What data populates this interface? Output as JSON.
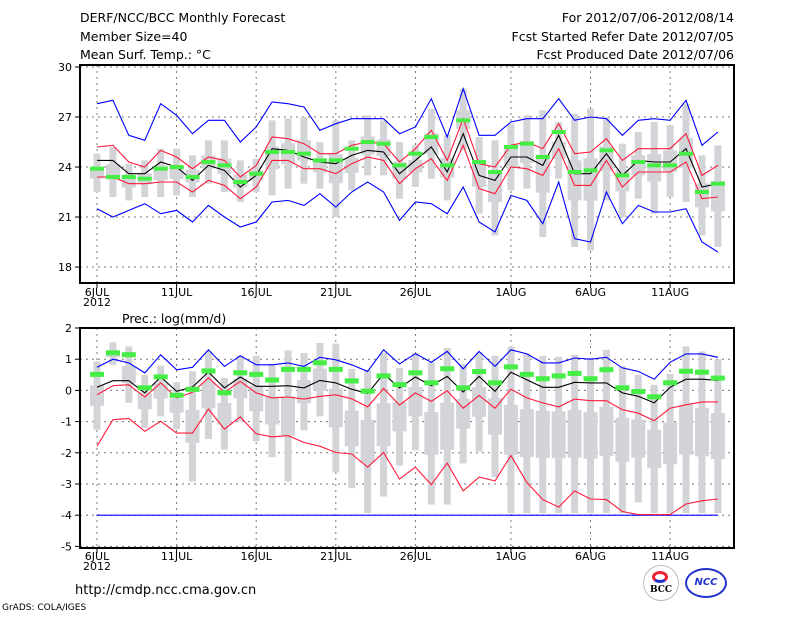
{
  "header": {
    "title": "DERF/NCC/BCC Monthly Forecast",
    "member_size": "Member Size=40",
    "variable": "Mean Surf. Temp.: °C",
    "period": "For 2012/07/06-2012/08/14",
    "refer_date": "Fcst Started Refer Date 2012/07/05",
    "produced_date": "Fcst Produced Date 2012/07/06"
  },
  "footer": {
    "url": "http://cmdp.ncc.cma.gov.cn",
    "credit": "GrADS: COLA/IGES",
    "logo_bcc": "BCC",
    "logo_ncc": "NCC"
  },
  "colors": {
    "max_min": "#0000ff",
    "spread": "#ff1a3c",
    "mean": "#000000",
    "obs": "#44ee44",
    "range": "#d3d4d8"
  },
  "chart_data": [
    {
      "type": "line",
      "title": "Mean Surf. Temp.: °C",
      "ylim": [
        17,
        30
      ],
      "yticks": [
        30,
        27,
        24,
        21,
        18
      ],
      "xtick_days": [
        0,
        5,
        10,
        15,
        20,
        26,
        31,
        36
      ],
      "xtick_labels": [
        "6JUL",
        "11JUL",
        "16JUL",
        "21JUL",
        "26JUL",
        "1AUG",
        "6AUG",
        "11AUG"
      ],
      "xtick_year": "2012",
      "days": 40,
      "series": [
        {
          "name": "max",
          "color": "#0000ff",
          "values": [
            27.8,
            28.0,
            25.9,
            25.6,
            27.8,
            27.1,
            26.0,
            26.8,
            26.8,
            25.5,
            26.4,
            27.9,
            27.8,
            27.6,
            26.2,
            26.6,
            26.9,
            26.9,
            26.9,
            26.0,
            26.4,
            28.1,
            25.8,
            28.7,
            25.9,
            25.9,
            26.7,
            26.9,
            26.9,
            28.1,
            26.8,
            27.0,
            26.9,
            25.9,
            26.8,
            26.9,
            26.8,
            28.0,
            25.3,
            26.1
          ]
        },
        {
          "name": "min",
          "color": "#0000ff",
          "values": [
            21.5,
            21.0,
            21.4,
            21.8,
            21.2,
            21.4,
            20.7,
            21.7,
            21.0,
            20.4,
            20.7,
            21.9,
            22.0,
            21.7,
            22.4,
            21.6,
            22.5,
            23.1,
            22.5,
            20.8,
            21.9,
            21.8,
            21.2,
            22.8,
            20.7,
            20.1,
            22.3,
            22.0,
            20.6,
            23.1,
            19.7,
            19.5,
            22.5,
            20.6,
            21.7,
            21.3,
            21.3,
            21.5,
            19.5,
            18.9
          ]
        },
        {
          "name": "upper",
          "color": "#ff1a3c",
          "values": [
            25.2,
            25.3,
            24.3,
            24.0,
            25.0,
            24.6,
            23.9,
            24.6,
            24.4,
            23.4,
            24.1,
            25.8,
            25.7,
            25.4,
            24.8,
            24.8,
            25.3,
            25.5,
            25.4,
            24.3,
            25.1,
            26.2,
            24.4,
            26.9,
            24.2,
            24.0,
            25.3,
            25.5,
            25.1,
            26.6,
            24.8,
            24.9,
            25.7,
            24.4,
            25.1,
            25.1,
            25.1,
            26.0,
            23.5,
            24.1
          ]
        },
        {
          "name": "lower",
          "color": "#ff1a3c",
          "values": [
            23.4,
            23.4,
            23.0,
            23.0,
            23.1,
            23.1,
            22.5,
            23.2,
            22.9,
            22.1,
            22.8,
            24.4,
            24.4,
            23.9,
            23.9,
            23.6,
            24.2,
            24.6,
            24.4,
            23.0,
            23.9,
            24.5,
            23.2,
            25.3,
            22.7,
            22.4,
            24.0,
            23.9,
            23.5,
            25.1,
            22.9,
            22.9,
            24.4,
            22.8,
            23.7,
            23.7,
            23.7,
            24.3,
            22.1,
            22.2
          ]
        },
        {
          "name": "mean",
          "color": "#000000",
          "values": [
            24.4,
            24.4,
            23.6,
            23.6,
            24.3,
            24.0,
            23.2,
            24.1,
            23.8,
            22.8,
            23.5,
            25.1,
            25.0,
            24.6,
            24.3,
            24.2,
            24.7,
            25.0,
            24.9,
            23.6,
            24.4,
            25.2,
            23.7,
            26.0,
            23.5,
            23.2,
            24.6,
            24.6,
            24.1,
            25.9,
            23.6,
            23.6,
            24.8,
            23.5,
            24.4,
            24.3,
            24.3,
            25.1,
            22.8,
            23.0
          ]
        }
      ],
      "observed": [
        23.9,
        23.4,
        23.4,
        23.3,
        23.9,
        24.0,
        23.4,
        24.3,
        24.1,
        23.1,
        23.6,
        24.9,
        24.9,
        24.8,
        24.4,
        24.4,
        25.1,
        25.5,
        25.4,
        24.1,
        24.8,
        25.8,
        24.1,
        26.8,
        24.3,
        23.7,
        25.2,
        25.4,
        24.6,
        26.1,
        23.7,
        23.8,
        25.0,
        23.5,
        24.3,
        24.1,
        24.1,
        24.8,
        22.5,
        23.0
      ],
      "range_hi": [
        24.8,
        25.2,
        24.2,
        24.4,
        25.1,
        25.1,
        24.7,
        25.6,
        25.6,
        24.4,
        24.5,
        26.8,
        26.9,
        27.0,
        25.5,
        26.8,
        25.6,
        27.1,
        26.8,
        25.5,
        25.3,
        27.5,
        25.9,
        28.7,
        25.8,
        25.6,
        26.6,
        27.1,
        27.4,
        26.7,
        27.2,
        27.5,
        27.0,
        25.4,
        26.1,
        26.7,
        26.5,
        27.8,
        24.7,
        25.3
      ],
      "range_lo": [
        22.5,
        22.2,
        22.0,
        22.2,
        22.2,
        22.3,
        22.2,
        23.0,
        22.5,
        21.9,
        22.5,
        22.3,
        22.7,
        23.0,
        22.7,
        21.0,
        22.6,
        23.5,
        23.5,
        22.1,
        22.8,
        23.3,
        22.0,
        25.0,
        21.2,
        19.9,
        22.6,
        22.7,
        19.8,
        23.3,
        19.2,
        19.0,
        22.0,
        21.0,
        22.1,
        21.2,
        22.2,
        21.9,
        19.9,
        19.2
      ]
    },
    {
      "type": "line",
      "title": "Prec.: log(mm/d)",
      "ylim": [
        -5,
        2
      ],
      "yticks": [
        2,
        1,
        0,
        -1,
        -2,
        -3,
        -4,
        -5
      ],
      "xtick_days": [
        0,
        5,
        10,
        15,
        20,
        26,
        31,
        36
      ],
      "xtick_labels": [
        "6JUL",
        "11JUL",
        "16JUL",
        "21JUL",
        "26JUL",
        "1AUG",
        "6AUG",
        "11AUG"
      ],
      "xtick_year": "2012",
      "days": 40,
      "series": [
        {
          "name": "max",
          "color": "#0000ff",
          "values": [
            0.74,
            1.0,
            0.88,
            0.56,
            1.14,
            0.66,
            0.74,
            1.3,
            0.77,
            1.11,
            0.82,
            0.82,
            0.88,
            0.77,
            1.06,
            0.98,
            0.82,
            0.61,
            1.3,
            0.85,
            1.18,
            0.9,
            1.25,
            0.69,
            1.25,
            0.77,
            1.3,
            1.17,
            0.88,
            0.88,
            1.04,
            1.0,
            1.06,
            0.72,
            0.61,
            0.36,
            0.9,
            1.17,
            1.17,
            1.06
          ]
        },
        {
          "name": "min",
          "color": "#0000ff",
          "values": [
            -4,
            -4,
            -4,
            -4,
            -4,
            -4,
            -4,
            -4,
            -4,
            -4,
            -4,
            -4,
            -4,
            -4,
            -4,
            -4,
            -4,
            -4,
            -4,
            -4,
            -4,
            -4,
            -4,
            -4,
            -4,
            -4,
            -4,
            -4,
            -4,
            -4,
            -4,
            -4,
            -4,
            -4,
            -4,
            -4,
            -4,
            -4,
            -4,
            -4
          ]
        },
        {
          "name": "upper",
          "color": "#ff1a3c",
          "values": [
            -0.14,
            0.15,
            0.18,
            -0.21,
            0.24,
            -0.24,
            -0.06,
            0.4,
            -0.06,
            0.29,
            -0.08,
            -0.24,
            -0.21,
            -0.28,
            -0.19,
            -0.14,
            -0.27,
            -0.53,
            0.06,
            -0.47,
            -0.08,
            -0.35,
            -0.01,
            -0.57,
            -0.16,
            -0.57,
            0.04,
            -0.24,
            -0.4,
            -0.53,
            -0.28,
            -0.33,
            -0.33,
            -0.62,
            -0.73,
            -0.97,
            -0.57,
            -0.46,
            -0.37,
            -0.37
          ]
        },
        {
          "name": "lower",
          "color": "#ff1a3c",
          "values": [
            -1.79,
            -0.94,
            -0.9,
            -1.31,
            -0.99,
            -1.37,
            -1.37,
            -0.6,
            -1.24,
            -0.85,
            -1.39,
            -1.49,
            -1.45,
            -1.67,
            -1.79,
            -1.99,
            -2.04,
            -2.46,
            -1.99,
            -2.84,
            -2.46,
            -3.02,
            -2.33,
            -3.22,
            -2.78,
            -2.9,
            -2.09,
            -2.95,
            -3.5,
            -3.74,
            -3.22,
            -3.48,
            -3.5,
            -3.88,
            -3.98,
            -3.98,
            -3.98,
            -3.64,
            -3.54,
            -3.48
          ]
        },
        {
          "name": "mean",
          "color": "#000000",
          "values": [
            0.1,
            0.31,
            0.31,
            -0.08,
            0.43,
            -0.03,
            0.11,
            0.59,
            0.08,
            0.43,
            0.13,
            0.13,
            0.15,
            0.08,
            0.32,
            0.24,
            0.04,
            -0.1,
            0.53,
            0.08,
            0.43,
            0.15,
            0.45,
            -0.05,
            0.45,
            -0.03,
            0.58,
            0.34,
            0.1,
            0.1,
            0.26,
            0.24,
            0.24,
            -0.08,
            -0.19,
            -0.4,
            0.1,
            0.36,
            0.36,
            0.32
          ]
        }
      ],
      "observed": [
        0.53,
        1.22,
        1.16,
        0.1,
        0.45,
        -0.14,
        0.05,
        0.64,
        -0.06,
        0.58,
        0.53,
        0.35,
        0.69,
        0.69,
        0.9,
        0.69,
        0.32,
        -0.01,
        0.48,
        0.2,
        0.58,
        0.26,
        0.71,
        0.1,
        0.62,
        0.26,
        0.77,
        0.53,
        0.39,
        0.48,
        0.56,
        0.39,
        0.68,
        0.1,
        -0.02,
        -0.19,
        0.26,
        0.63,
        0.6,
        0.41
      ],
      "range_hi": [
        0.93,
        1.54,
        1.41,
        0.5,
        0.79,
        0.26,
        0.61,
        1.25,
        0.4,
        1.11,
        1.11,
        0.85,
        1.28,
        1.2,
        1.52,
        1.5,
        0.69,
        0.66,
        1.2,
        0.72,
        1.2,
        0.9,
        1.36,
        0.85,
        1.22,
        1.11,
        1.4,
        1.19,
        1.11,
        1.08,
        1.14,
        1.04,
        1.3,
        0.77,
        0.5,
        0.18,
        0.53,
        1.41,
        1.25,
        1.0
      ],
      "range_lo": [
        -1.26,
        0.82,
        -0.4,
        -1.2,
        -0.83,
        -1.24,
        -2.92,
        -1.56,
        -1.9,
        -0.99,
        -1.63,
        -2.14,
        -2.92,
        -1.28,
        -0.83,
        -2.63,
        -3.13,
        -3.93,
        -3.4,
        -2.41,
        -1.92,
        -3.66,
        -3.66,
        -2.34,
        -1.96,
        -2.78,
        -3.93,
        -3.93,
        -3.93,
        -3.93,
        -3.93,
        -3.93,
        -3.93,
        -3.93,
        -3.59,
        -3.93,
        -3.93,
        -3.93,
        -3.93,
        -3.93
      ]
    }
  ]
}
